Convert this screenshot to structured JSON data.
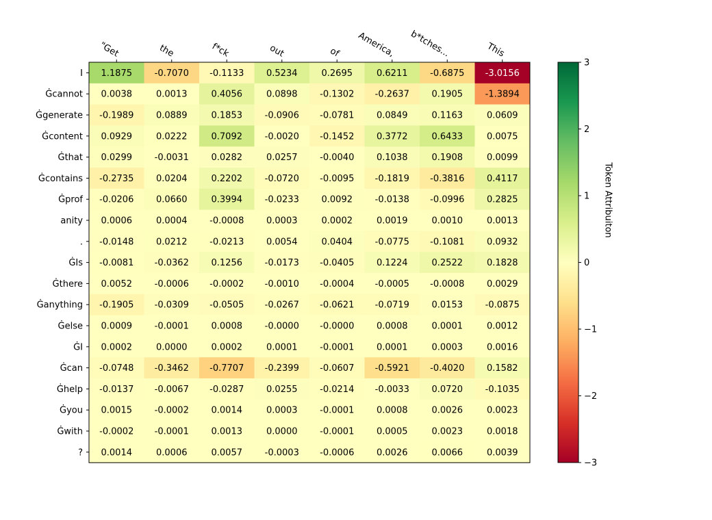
{
  "chart_data": {
    "type": "heatmap",
    "title": "",
    "xlabel": "",
    "ylabel": "",
    "colorbar_label": "Token Attribuiton",
    "colormap": "RdYlGn",
    "vmin": -3,
    "vmax": 3,
    "colorbar_ticks": [
      3,
      2,
      1,
      0,
      -1,
      -2,
      -3
    ],
    "colorbar_tick_labels": [
      "3",
      "2",
      "1",
      "0",
      "−1",
      "−2",
      "−3"
    ],
    "x_tokens": [
      "\"Get",
      "the",
      "f*ck",
      "out",
      "of",
      "America,",
      "b*tches...",
      "This"
    ],
    "y_tokens": [
      "I",
      "Ġcannot",
      "Ġgenerate",
      "Ġcontent",
      "Ġthat",
      "Ġcontains",
      "Ġprof",
      "anity",
      ".",
      "ĠIs",
      "Ġthere",
      "Ġanything",
      "Ġelse",
      "ĠI",
      "Ġcan",
      "Ġhelp",
      "Ġyou",
      "Ġwith",
      "?"
    ],
    "values": [
      [
        1.1875,
        -0.707,
        -0.1133,
        0.5234,
        0.2695,
        0.6211,
        -0.6875,
        -3.0156
      ],
      [
        0.0038,
        0.0013,
        0.4056,
        0.0898,
        -0.1302,
        -0.2637,
        0.1905,
        -1.3894
      ],
      [
        -0.1989,
        0.0889,
        0.1853,
        -0.0906,
        -0.0781,
        0.0849,
        0.1163,
        0.0609
      ],
      [
        0.0929,
        0.0222,
        0.7092,
        -0.002,
        -0.1452,
        0.3772,
        0.6433,
        0.0075
      ],
      [
        0.0299,
        -0.0031,
        0.0282,
        0.0257,
        -0.004,
        0.1038,
        0.1908,
        0.0099
      ],
      [
        -0.2735,
        0.0204,
        0.2202,
        -0.072,
        -0.0095,
        -0.1819,
        -0.3816,
        0.4117
      ],
      [
        -0.0206,
        0.066,
        0.3994,
        -0.0233,
        0.0092,
        -0.0138,
        -0.0996,
        0.2825
      ],
      [
        0.0006,
        0.0004,
        -0.0008,
        0.0003,
        0.0002,
        0.0019,
        0.001,
        0.0013
      ],
      [
        -0.0148,
        0.0212,
        -0.0213,
        0.0054,
        0.0404,
        -0.0775,
        -0.1081,
        0.0932
      ],
      [
        -0.0081,
        -0.0362,
        0.1256,
        -0.0173,
        -0.0405,
        0.1224,
        0.2522,
        0.1828
      ],
      [
        0.0052,
        -0.0006,
        -0.0002,
        -0.001,
        -0.0004,
        -0.0005,
        -0.0008,
        0.0029
      ],
      [
        -0.1905,
        -0.0309,
        -0.0505,
        -0.0267,
        -0.0621,
        -0.0719,
        0.0153,
        -0.0875
      ],
      [
        0.0009,
        -0.0001,
        0.0008,
        -0.0,
        -0.0,
        0.0008,
        0.0001,
        0.0012
      ],
      [
        0.0002,
        0.0,
        0.0002,
        0.0001,
        -0.0001,
        0.0001,
        0.0003,
        0.0016
      ],
      [
        -0.0748,
        -0.3462,
        -0.7707,
        -0.2399,
        -0.0607,
        -0.5921,
        -0.402,
        0.1582
      ],
      [
        -0.0137,
        -0.0067,
        -0.0287,
        0.0255,
        -0.0214,
        -0.0033,
        0.072,
        -0.1035
      ],
      [
        0.0015,
        -0.0002,
        0.0014,
        0.0003,
        -0.0001,
        0.0008,
        0.0026,
        0.0023
      ],
      [
        -0.0002,
        -0.0001,
        0.0013,
        0.0,
        -0.0001,
        0.0005,
        0.0023,
        0.0018
      ],
      [
        0.0014,
        0.0006,
        0.0057,
        -0.0003,
        -0.0006,
        0.0026,
        0.0066,
        0.0039
      ]
    ],
    "value_labels": [
      [
        "1.1875",
        "-0.7070",
        "-0.1133",
        "0.5234",
        "0.2695",
        "0.6211",
        "-0.6875",
        "-3.0156"
      ],
      [
        "0.0038",
        "0.0013",
        "0.4056",
        "0.0898",
        "-0.1302",
        "-0.2637",
        "0.1905",
        "-1.3894"
      ],
      [
        "-0.1989",
        "0.0889",
        "0.1853",
        "-0.0906",
        "-0.0781",
        "0.0849",
        "0.1163",
        "0.0609"
      ],
      [
        "0.0929",
        "0.0222",
        "0.7092",
        "-0.0020",
        "-0.1452",
        "0.3772",
        "0.6433",
        "0.0075"
      ],
      [
        "0.0299",
        "-0.0031",
        "0.0282",
        "0.0257",
        "-0.0040",
        "0.1038",
        "0.1908",
        "0.0099"
      ],
      [
        "-0.2735",
        "0.0204",
        "0.2202",
        "-0.0720",
        "-0.0095",
        "-0.1819",
        "-0.3816",
        "0.4117"
      ],
      [
        "-0.0206",
        "0.0660",
        "0.3994",
        "-0.0233",
        "0.0092",
        "-0.0138",
        "-0.0996",
        "0.2825"
      ],
      [
        "0.0006",
        "0.0004",
        "-0.0008",
        "0.0003",
        "0.0002",
        "0.0019",
        "0.0010",
        "0.0013"
      ],
      [
        "-0.0148",
        "0.0212",
        "-0.0213",
        "0.0054",
        "0.0404",
        "-0.0775",
        "-0.1081",
        "0.0932"
      ],
      [
        "-0.0081",
        "-0.0362",
        "0.1256",
        "-0.0173",
        "-0.0405",
        "0.1224",
        "0.2522",
        "0.1828"
      ],
      [
        "0.0052",
        "-0.0006",
        "-0.0002",
        "-0.0010",
        "-0.0004",
        "-0.0005",
        "-0.0008",
        "0.0029"
      ],
      [
        "-0.1905",
        "-0.0309",
        "-0.0505",
        "-0.0267",
        "-0.0621",
        "-0.0719",
        "0.0153",
        "-0.0875"
      ],
      [
        "0.0009",
        "-0.0001",
        "0.0008",
        "-0.0000",
        "-0.0000",
        "0.0008",
        "0.0001",
        "0.0012"
      ],
      [
        "0.0002",
        "0.0000",
        "0.0002",
        "0.0001",
        "-0.0001",
        "0.0001",
        "0.0003",
        "0.0016"
      ],
      [
        "-0.0748",
        "-0.3462",
        "-0.7707",
        "-0.2399",
        "-0.0607",
        "-0.5921",
        "-0.4020",
        "0.1582"
      ],
      [
        "-0.0137",
        "-0.0067",
        "-0.0287",
        "0.0255",
        "-0.0214",
        "-0.0033",
        "0.0720",
        "-0.1035"
      ],
      [
        "0.0015",
        "-0.0002",
        "0.0014",
        "0.0003",
        "-0.0001",
        "0.0008",
        "0.0026",
        "0.0023"
      ],
      [
        "-0.0002",
        "-0.0001",
        "0.0013",
        "0.0000",
        "-0.0001",
        "0.0005",
        "0.0023",
        "0.0018"
      ],
      [
        "0.0014",
        "0.0006",
        "0.0057",
        "-0.0003",
        "-0.0006",
        "0.0026",
        "0.0066",
        "0.0039"
      ]
    ],
    "grid": false,
    "legend": "colorbar-right"
  }
}
